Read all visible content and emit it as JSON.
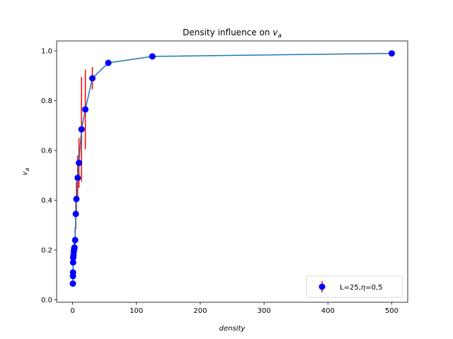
{
  "chart_data": {
    "type": "line",
    "title_prefix": "Density influence on ",
    "title_var": "v",
    "title_sub": "a",
    "xlabel": "density",
    "ylabel_var": "v",
    "ylabel_sub": "a",
    "xlim": [
      -25,
      525
    ],
    "ylim": [
      -0.01,
      1.04
    ],
    "xticks": [
      0,
      100,
      200,
      300,
      400,
      500
    ],
    "xtick_labels": [
      "0",
      "100",
      "200",
      "300",
      "400",
      "500"
    ],
    "yticks": [
      0.0,
      0.2,
      0.4,
      0.6,
      0.8,
      1.0
    ],
    "ytick_labels": [
      "0.0",
      "0.2",
      "0.4",
      "0.6",
      "0.8",
      "1.0"
    ],
    "grid": false,
    "legend_position": "lower-right",
    "series": [
      {
        "name": "L=25,η=0,5",
        "legend_text_prefix": "L=25,",
        "legend_text_greek": "η",
        "legend_text_suffix": "=0,5",
        "line_color": "#1f77b4",
        "marker_color": "#0000ff",
        "error_color": "#ff0000",
        "points": [
          {
            "x": 0.5,
            "y": 0.065,
            "err": 0.01
          },
          {
            "x": 0.6,
            "y": 0.095,
            "err": 0.01
          },
          {
            "x": 0.7,
            "y": 0.11,
            "err": 0.015
          },
          {
            "x": 0.8,
            "y": 0.15,
            "err": 0.02
          },
          {
            "x": 1.0,
            "y": 0.17,
            "err": 0.02
          },
          {
            "x": 1.5,
            "y": 0.18,
            "err": 0.02
          },
          {
            "x": 2.0,
            "y": 0.195,
            "err": 0.025
          },
          {
            "x": 2.5,
            "y": 0.205,
            "err": 0.03
          },
          {
            "x": 3.0,
            "y": 0.21,
            "err": 0.035
          },
          {
            "x": 4.0,
            "y": 0.24,
            "err": 0.05
          },
          {
            "x": 5.0,
            "y": 0.345,
            "err": 0.06
          },
          {
            "x": 6.0,
            "y": 0.405,
            "err": 0.07
          },
          {
            "x": 8.0,
            "y": 0.49,
            "err": 0.09
          },
          {
            "x": 10.0,
            "y": 0.55,
            "err": 0.1
          },
          {
            "x": 14.0,
            "y": 0.685,
            "err": 0.21
          },
          {
            "x": 20.0,
            "y": 0.765,
            "err": 0.16
          },
          {
            "x": 31.0,
            "y": 0.89,
            "err": 0.045
          },
          {
            "x": 56.0,
            "y": 0.952,
            "err": 0.005
          },
          {
            "x": 125.0,
            "y": 0.978,
            "err": 0.003
          },
          {
            "x": 500.0,
            "y": 0.99,
            "err": 0.002
          }
        ]
      }
    ]
  }
}
